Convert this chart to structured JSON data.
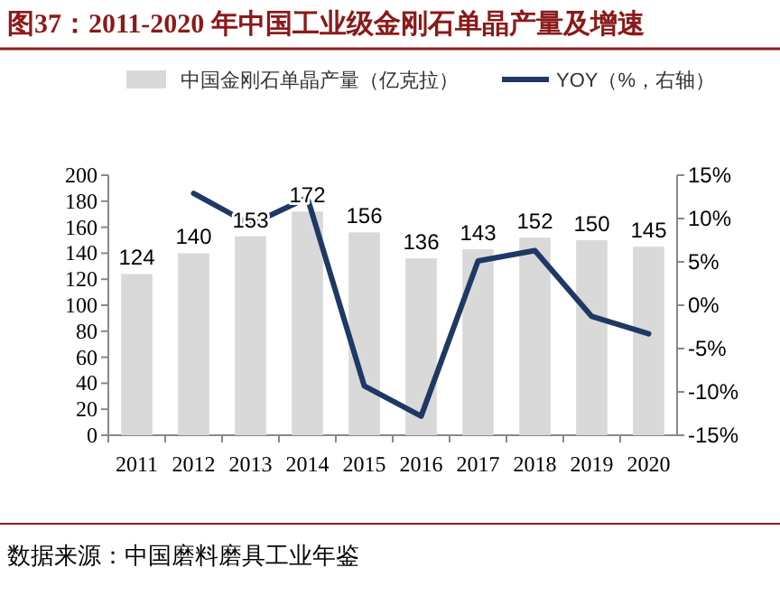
{
  "chart_data": {
    "type": "bar",
    "title": "图37：2011-2020 年中国工业级金刚石单晶产量及增速",
    "categories": [
      "2011",
      "2012",
      "2013",
      "2014",
      "2015",
      "2016",
      "2017",
      "2018",
      "2019",
      "2020"
    ],
    "series": [
      {
        "name": "中国金刚石单晶产量（亿克拉）",
        "color": "#d9d9d9",
        "values": [
          124,
          140,
          153,
          172,
          156,
          136,
          143,
          152,
          150,
          145
        ],
        "value_labels": [
          "124",
          "140",
          "153",
          "172",
          "156",
          "136",
          "143",
          "152",
          "150",
          "145"
        ]
      },
      {
        "name": "YOY（%，右轴）",
        "type": "line",
        "axis": "y2",
        "color": "#1f3864",
        "values": [
          null,
          12.9,
          9.3,
          12.4,
          -9.3,
          -12.8,
          5.1,
          6.3,
          -1.3,
          -3.3
        ]
      }
    ],
    "ylim": [
      0,
      200
    ],
    "yticks": [
      0,
      20,
      40,
      60,
      80,
      100,
      120,
      140,
      160,
      180,
      200
    ],
    "y2lim": [
      -15,
      15
    ],
    "y2ticks": [
      {
        "value": -15,
        "label": "-15%"
      },
      {
        "value": -10,
        "label": "-10%"
      },
      {
        "value": -5,
        "label": "-5%"
      },
      {
        "value": 0,
        "label": "0%"
      },
      {
        "value": 5,
        "label": "5%"
      },
      {
        "value": 10,
        "label": "10%"
      },
      {
        "value": 15,
        "label": "15%"
      }
    ],
    "legend": "top",
    "grid": false,
    "annotations": [
      "数据来源：中国磨料磨具工业年鉴"
    ]
  }
}
